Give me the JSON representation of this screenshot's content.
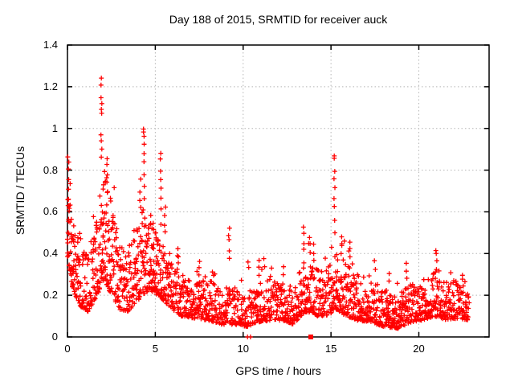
{
  "chart_data": {
    "type": "scatter",
    "title": "Day 188 of 2015, SRMTID for receiver auck",
    "xlabel": "GPS time / hours",
    "ylabel": "SRMTID / TECUs",
    "xlim": [
      0,
      24
    ],
    "ylim": [
      0,
      1.4
    ],
    "x_ticks": [
      {
        "v": 0,
        "label": "0"
      },
      {
        "v": 5,
        "label": "5"
      },
      {
        "v": 10,
        "label": "10"
      },
      {
        "v": 15,
        "label": "15"
      },
      {
        "v": 20,
        "label": "20"
      }
    ],
    "y_ticks": [
      {
        "v": 0,
        "label": "0"
      },
      {
        "v": 0.2,
        "label": "0.2"
      },
      {
        "v": 0.4,
        "label": "0.4"
      },
      {
        "v": 0.6,
        "label": "0.6"
      },
      {
        "v": 0.8,
        "label": "0.8"
      },
      {
        "v": 1,
        "label": "1"
      },
      {
        "v": 1.2,
        "label": "1.2"
      },
      {
        "v": 1.4,
        "label": "1.4"
      }
    ],
    "grid": true,
    "legend": "none",
    "marker": {
      "shape": "plus",
      "color": "#ff0000",
      "size": 7,
      "stroke_width": 1.3
    },
    "grid_color": "#b5b5b5",
    "border_color": "#000000",
    "background_color": "#ffffff",
    "data_start_hour": 0.0,
    "data_end_hour": 22.85,
    "step_hours": 0.025,
    "seed": 188,
    "square_point": {
      "x": 13.85,
      "y": 0.0,
      "shape": "filled-square",
      "color": "#ff0000",
      "size": 6
    },
    "near_zero_points": [
      [
        10.25,
        0.0
      ],
      [
        10.42,
        0.0
      ]
    ],
    "spikes": [
      {
        "x": 0.05,
        "values": [
          0.87,
          0.84,
          0.8,
          0.75,
          0.71,
          0.66,
          0.63
        ]
      },
      {
        "x": 1.93,
        "values": [
          1.24,
          1.21,
          1.14,
          1.12,
          1.09,
          1.07,
          0.97,
          0.94,
          0.9,
          0.86
        ]
      },
      {
        "x": 2.25,
        "values": [
          0.85,
          0.82,
          0.78,
          0.74,
          0.7
        ]
      },
      {
        "x": 4.15,
        "values": [
          0.75,
          0.7,
          0.66,
          0.62
        ]
      },
      {
        "x": 4.35,
        "values": [
          1.0,
          0.98,
          0.96,
          0.92,
          0.88,
          0.84,
          0.78,
          0.72,
          0.66
        ]
      },
      {
        "x": 5.3,
        "values": [
          0.88,
          0.85,
          0.8,
          0.76,
          0.71,
          0.66,
          0.61
        ]
      },
      {
        "x": 5.55,
        "values": [
          0.62,
          0.58,
          0.54,
          0.5
        ]
      },
      {
        "x": 6.3,
        "values": [
          0.42,
          0.38,
          0.35
        ]
      },
      {
        "x": 7.5,
        "values": [
          0.36,
          0.33,
          0.3
        ]
      },
      {
        "x": 9.2,
        "values": [
          0.52,
          0.49,
          0.46,
          0.42,
          0.38
        ]
      },
      {
        "x": 10.3,
        "values": [
          0.36,
          0.33
        ]
      },
      {
        "x": 10.9,
        "values": [
          0.37,
          0.34,
          0.3
        ]
      },
      {
        "x": 11.2,
        "values": [
          0.38,
          0.34
        ]
      },
      {
        "x": 12.3,
        "values": [
          0.33,
          0.3
        ]
      },
      {
        "x": 13.45,
        "values": [
          0.52,
          0.49,
          0.45,
          0.42
        ]
      },
      {
        "x": 13.8,
        "values": [
          0.47,
          0.44,
          0.4
        ]
      },
      {
        "x": 14.0,
        "values": [
          0.44,
          0.4
        ]
      },
      {
        "x": 15.2,
        "values": [
          0.87,
          0.85,
          0.8,
          0.76,
          0.72,
          0.67,
          0.62,
          0.56,
          0.5
        ]
      },
      {
        "x": 15.6,
        "values": [
          0.48,
          0.44,
          0.4
        ]
      },
      {
        "x": 16.1,
        "values": [
          0.45,
          0.42,
          0.38
        ]
      },
      {
        "x": 17.5,
        "values": [
          0.36,
          0.32
        ]
      },
      {
        "x": 18.3,
        "values": [
          0.3,
          0.27
        ]
      },
      {
        "x": 19.3,
        "values": [
          0.35,
          0.31,
          0.28
        ]
      },
      {
        "x": 21.0,
        "values": [
          0.42,
          0.4,
          0.36,
          0.33
        ]
      },
      {
        "x": 22.5,
        "values": [
          0.3,
          0.27
        ]
      }
    ],
    "baseline_envelope": [
      {
        "t": 0.0,
        "lo": 0.38,
        "hi": 0.72,
        "d": 3.2
      },
      {
        "t": 0.25,
        "lo": 0.25,
        "hi": 0.6,
        "d": 2.8
      },
      {
        "t": 0.7,
        "lo": 0.15,
        "hi": 0.45,
        "d": 2.2
      },
      {
        "t": 1.2,
        "lo": 0.12,
        "hi": 0.38,
        "d": 2.0
      },
      {
        "t": 1.8,
        "lo": 0.22,
        "hi": 0.6,
        "d": 2.6
      },
      {
        "t": 2.1,
        "lo": 0.28,
        "hi": 0.8,
        "d": 3.0
      },
      {
        "t": 2.5,
        "lo": 0.2,
        "hi": 0.65,
        "d": 2.6
      },
      {
        "t": 3.0,
        "lo": 0.13,
        "hi": 0.45,
        "d": 2.2
      },
      {
        "t": 3.6,
        "lo": 0.12,
        "hi": 0.4,
        "d": 2.2
      },
      {
        "t": 4.2,
        "lo": 0.2,
        "hi": 0.6,
        "d": 2.6
      },
      {
        "t": 4.7,
        "lo": 0.22,
        "hi": 0.55,
        "d": 2.8
      },
      {
        "t": 5.2,
        "lo": 0.2,
        "hi": 0.5,
        "d": 2.6
      },
      {
        "t": 5.8,
        "lo": 0.14,
        "hi": 0.38,
        "d": 2.2
      },
      {
        "t": 6.5,
        "lo": 0.1,
        "hi": 0.3,
        "d": 2.0
      },
      {
        "t": 7.2,
        "lo": 0.09,
        "hi": 0.26,
        "d": 2.0
      },
      {
        "t": 8.0,
        "lo": 0.08,
        "hi": 0.28,
        "d": 2.0
      },
      {
        "t": 8.8,
        "lo": 0.06,
        "hi": 0.22,
        "d": 1.8
      },
      {
        "t": 9.5,
        "lo": 0.06,
        "hi": 0.24,
        "d": 1.8
      },
      {
        "t": 10.2,
        "lo": 0.05,
        "hi": 0.2,
        "d": 1.7
      },
      {
        "t": 10.9,
        "lo": 0.07,
        "hi": 0.26,
        "d": 1.9
      },
      {
        "t": 11.6,
        "lo": 0.08,
        "hi": 0.28,
        "d": 1.9
      },
      {
        "t": 12.2,
        "lo": 0.08,
        "hi": 0.26,
        "d": 1.9
      },
      {
        "t": 12.9,
        "lo": 0.06,
        "hi": 0.24,
        "d": 1.8
      },
      {
        "t": 13.5,
        "lo": 0.12,
        "hi": 0.38,
        "d": 2.2
      },
      {
        "t": 14.0,
        "lo": 0.1,
        "hi": 0.34,
        "d": 2.0
      },
      {
        "t": 14.7,
        "lo": 0.1,
        "hi": 0.32,
        "d": 2.0
      },
      {
        "t": 15.3,
        "lo": 0.13,
        "hi": 0.4,
        "d": 2.4
      },
      {
        "t": 15.9,
        "lo": 0.1,
        "hi": 0.36,
        "d": 2.2
      },
      {
        "t": 16.5,
        "lo": 0.08,
        "hi": 0.3,
        "d": 2.0
      },
      {
        "t": 17.3,
        "lo": 0.07,
        "hi": 0.26,
        "d": 2.0
      },
      {
        "t": 18.0,
        "lo": 0.05,
        "hi": 0.24,
        "d": 2.2
      },
      {
        "t": 18.8,
        "lo": 0.04,
        "hi": 0.2,
        "d": 2.2
      },
      {
        "t": 19.5,
        "lo": 0.07,
        "hi": 0.26,
        "d": 2.0
      },
      {
        "t": 20.2,
        "lo": 0.08,
        "hi": 0.24,
        "d": 1.9
      },
      {
        "t": 20.9,
        "lo": 0.1,
        "hi": 0.32,
        "d": 2.0
      },
      {
        "t": 21.6,
        "lo": 0.08,
        "hi": 0.26,
        "d": 1.9
      },
      {
        "t": 22.2,
        "lo": 0.09,
        "hi": 0.28,
        "d": 2.0
      },
      {
        "t": 22.85,
        "lo": 0.08,
        "hi": 0.22,
        "d": 1.8
      }
    ]
  }
}
